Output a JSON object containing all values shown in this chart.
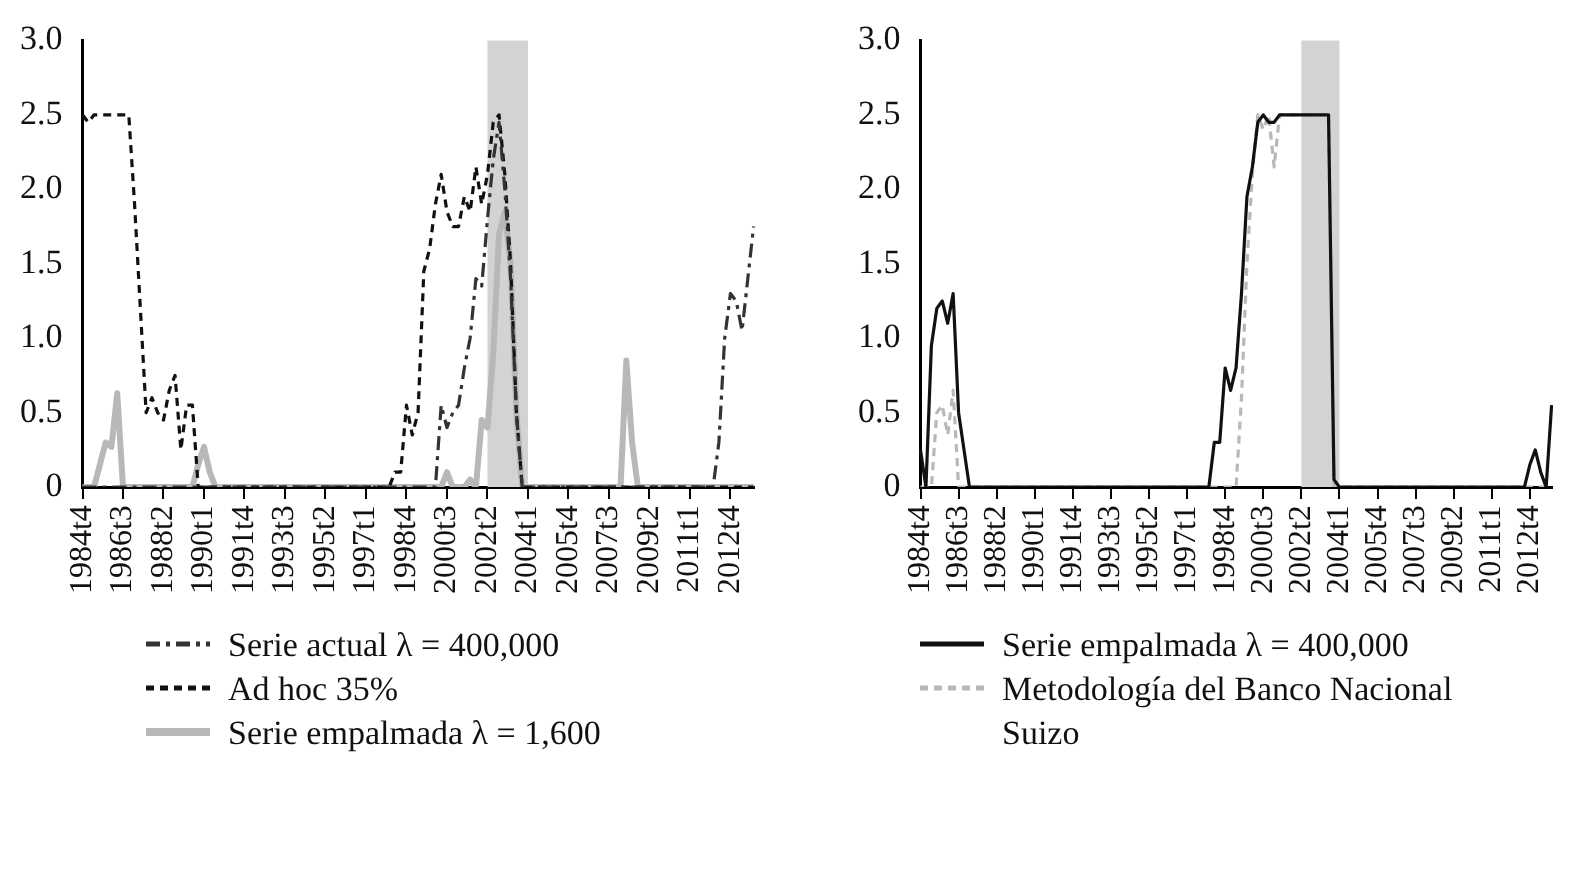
{
  "chart_data": [
    {
      "type": "line",
      "categories": [
        "1984t4",
        null,
        null,
        null,
        null,
        null,
        null,
        "1986t3",
        null,
        null,
        null,
        null,
        null,
        null,
        "1988t2",
        null,
        null,
        null,
        null,
        null,
        null,
        "1990t1",
        null,
        null,
        null,
        null,
        null,
        null,
        "1991t4",
        null,
        null,
        null,
        null,
        null,
        null,
        "1993t3",
        null,
        null,
        null,
        null,
        null,
        null,
        "1995t2",
        null,
        null,
        null,
        null,
        null,
        null,
        "1997t1",
        null,
        null,
        null,
        null,
        null,
        null,
        "1998t4",
        null,
        null,
        null,
        null,
        null,
        null,
        "2000t3",
        null,
        null,
        null,
        null,
        null,
        null,
        "2002t2",
        null,
        null,
        null,
        null,
        null,
        null,
        "2004t1",
        null,
        null,
        null,
        null,
        null,
        null,
        "2005t4",
        null,
        null,
        null,
        null,
        null,
        null,
        "2007t3",
        null,
        null,
        null,
        null,
        null,
        null,
        "2009t2",
        null,
        null,
        null,
        null,
        null,
        null,
        "2011t1",
        null,
        null,
        null,
        null,
        null,
        null,
        "2012t4",
        null,
        null,
        null,
        null
      ],
      "series": [
        {
          "name": "Serie actual  λ = 400,000",
          "color": "#333333",
          "line_style": "dotted",
          "values": [
            0,
            0,
            0,
            0,
            0,
            0,
            0,
            0,
            0,
            0,
            0,
            0,
            0,
            0,
            0,
            0,
            0,
            0,
            0,
            0,
            0,
            0,
            0,
            0,
            0,
            0,
            0,
            0,
            0,
            0,
            0,
            0,
            0,
            0,
            0,
            0,
            0,
            0,
            0,
            0,
            0,
            0,
            0,
            0,
            0,
            0,
            0,
            0,
            0,
            0,
            0,
            0,
            0,
            0,
            0,
            0,
            0,
            0,
            0,
            0,
            0,
            0,
            0.55,
            0.4,
            0.5,
            0.55,
            0.8,
            1.0,
            1.4,
            1.35,
            1.8,
            2.2,
            2.45,
            2.0,
            1.4,
            0.5,
            0,
            0,
            0,
            0,
            0,
            0,
            0,
            0,
            0,
            0,
            0,
            0,
            0,
            0,
            0,
            0,
            0,
            0,
            0,
            0,
            0,
            0,
            0,
            0,
            0,
            0,
            0,
            0,
            0,
            0,
            0,
            0,
            0,
            0,
            0.3,
            1.0,
            1.3,
            1.25,
            1.05,
            1.4,
            1.75
          ]
        },
        {
          "name": "Ad hoc  35%",
          "color": "#111111",
          "line_style": "dashed",
          "values": [
            2.5,
            2.45,
            2.5,
            2.5,
            2.5,
            2.5,
            2.5,
            2.5,
            2.5,
            1.9,
            1.2,
            0.5,
            0.6,
            0.5,
            0.45,
            0.65,
            0.75,
            0.25,
            0.55,
            0.55,
            0,
            0,
            0,
            0,
            0,
            0,
            0,
            0,
            0,
            0,
            0,
            0,
            0,
            0,
            0,
            0,
            0,
            0,
            0,
            0,
            0,
            0,
            0,
            0,
            0,
            0,
            0,
            0,
            0,
            0,
            0,
            0,
            0,
            0,
            0.1,
            0.1,
            0.55,
            0.35,
            0.5,
            1.45,
            1.6,
            1.9,
            2.1,
            1.85,
            1.75,
            1.75,
            1.95,
            1.85,
            2.15,
            1.9,
            2.1,
            2.45,
            2.5,
            2.1,
            1.5,
            0.5,
            0,
            0,
            0,
            0,
            0,
            0,
            0,
            0,
            0,
            0,
            0,
            0,
            0,
            0,
            0,
            0,
            0,
            0,
            0,
            0,
            0,
            0,
            0,
            0,
            0,
            0,
            0,
            0,
            0,
            0,
            0,
            0,
            0,
            0,
            0,
            0,
            0,
            0,
            0,
            0,
            0
          ]
        },
        {
          "name": "Serie empalmada  λ = 1,600",
          "color": "#b8b8b8",
          "line_style": "solid",
          "values": [
            0,
            0,
            0,
            0.15,
            0.3,
            0.27,
            0.63,
            0,
            0,
            0,
            0,
            0,
            0,
            0,
            0,
            0,
            0,
            0,
            0,
            0,
            0.15,
            0.27,
            0.1,
            0,
            0,
            0,
            0,
            0,
            0,
            0,
            0,
            0,
            0,
            0,
            0,
            0,
            0,
            0,
            0,
            0,
            0,
            0,
            0,
            0,
            0,
            0,
            0,
            0,
            0,
            0,
            0,
            0,
            0,
            0,
            0,
            0,
            0,
            0,
            0,
            0,
            0,
            0,
            0,
            0.1,
            0,
            0,
            0,
            0.05,
            0,
            0.45,
            0.4,
            0.9,
            1.7,
            1.85,
            1.5,
            0.5,
            0,
            0,
            0,
            0,
            0,
            0,
            0,
            0,
            0,
            0,
            0,
            0,
            0,
            0,
            0,
            0,
            0,
            0,
            0.85,
            0.3,
            0,
            0,
            0,
            0,
            0,
            0,
            0,
            0,
            0,
            0,
            0,
            0,
            0,
            0,
            0,
            0,
            0,
            0,
            0,
            0,
            0
          ]
        }
      ],
      "ylim": [
        0,
        3
      ],
      "yticks": [
        0,
        0.5,
        {
          "value": 1,
          "label": "1.0"
        },
        1.5,
        {
          "value": 2,
          "label": "2.0"
        },
        2.5,
        {
          "value": 3,
          "label": "3.0"
        }
      ],
      "bands": [
        {
          "axis": "x",
          "from": "2002t2",
          "to": "2004t1",
          "color": "#d3d3d3"
        }
      ],
      "legend": "bottom"
    },
    {
      "type": "line",
      "categories": [
        "1984t4",
        null,
        null,
        null,
        null,
        null,
        null,
        "1986t3",
        null,
        null,
        null,
        null,
        null,
        null,
        "1988t2",
        null,
        null,
        null,
        null,
        null,
        null,
        "1990t1",
        null,
        null,
        null,
        null,
        null,
        null,
        "1991t4",
        null,
        null,
        null,
        null,
        null,
        null,
        "1993t3",
        null,
        null,
        null,
        null,
        null,
        null,
        "1995t2",
        null,
        null,
        null,
        null,
        null,
        null,
        "1997t1",
        null,
        null,
        null,
        null,
        null,
        null,
        "1998t4",
        null,
        null,
        null,
        null,
        null,
        null,
        "2000t3",
        null,
        null,
        null,
        null,
        null,
        null,
        "2002t2",
        null,
        null,
        null,
        null,
        null,
        null,
        "2004t1",
        null,
        null,
        null,
        null,
        null,
        null,
        "2005t4",
        null,
        null,
        null,
        null,
        null,
        null,
        "2007t3",
        null,
        null,
        null,
        null,
        null,
        null,
        "2009t2",
        null,
        null,
        null,
        null,
        null,
        null,
        "2011t1",
        null,
        null,
        null,
        null,
        null,
        null,
        "2012t4",
        null,
        null,
        null,
        null
      ],
      "series": [
        {
          "name": "Serie empalmada  λ = 400,000",
          "color": "#111111",
          "line_style": "solid",
          "values": [
            0.25,
            0,
            0.95,
            1.2,
            1.25,
            1.1,
            1.3,
            0.5,
            0.25,
            0,
            0,
            0,
            0,
            0,
            0,
            0,
            0,
            0,
            0,
            0,
            0,
            0,
            0,
            0,
            0,
            0,
            0,
            0,
            0,
            0,
            0,
            0,
            0,
            0,
            0,
            0,
            0,
            0,
            0,
            0,
            0,
            0,
            0,
            0,
            0,
            0,
            0,
            0,
            0,
            0,
            0,
            0,
            0,
            0,
            0.3,
            0.3,
            0.8,
            0.65,
            0.8,
            1.3,
            1.95,
            2.15,
            2.45,
            2.5,
            2.45,
            2.45,
            2.5,
            2.5,
            2.5,
            2.5,
            2.5,
            2.5,
            2.5,
            2.5,
            2.5,
            2.5,
            0.05,
            0,
            0,
            0,
            0,
            0,
            0,
            0,
            0,
            0,
            0,
            0,
            0,
            0,
            0,
            0,
            0,
            0,
            0,
            0,
            0,
            0,
            0,
            0,
            0,
            0,
            0,
            0,
            0,
            0,
            0,
            0,
            0,
            0,
            0,
            0,
            0.15,
            0.25,
            0.1,
            0,
            0.55
          ]
        },
        {
          "name": "Metodología del Banco Nacional Suizo",
          "color": "#b8b8b8",
          "line_style": "dashed",
          "values": [
            0,
            0,
            0,
            0.5,
            0.55,
            0.35,
            0.65,
            0,
            0,
            0,
            0,
            0,
            0,
            0,
            0,
            0,
            0,
            0,
            0,
            0,
            0,
            0,
            0,
            0,
            0,
            0,
            0,
            0,
            0,
            0,
            0,
            0,
            0,
            0,
            0,
            0,
            0,
            0,
            0,
            0,
            0,
            0,
            0,
            0,
            0,
            0,
            0,
            0,
            0,
            0,
            0,
            0,
            0,
            0,
            0,
            0,
            0,
            0,
            0,
            0.6,
            1.5,
            2.1,
            2.5,
            2.4,
            2.5,
            2.15,
            2.5,
            2.5,
            2.5,
            2.5,
            2.5,
            2.5,
            2.5,
            2.5,
            2.5,
            2.5,
            0,
            0,
            0,
            0,
            0,
            0,
            0,
            0,
            0,
            0,
            0,
            0,
            0,
            0,
            0,
            0,
            0,
            0,
            0,
            0,
            0,
            0,
            0,
            0,
            0,
            0,
            0,
            0,
            0,
            0,
            0,
            0,
            0,
            0,
            0,
            0,
            0,
            0,
            0,
            0,
            0
          ]
        }
      ],
      "ylim": [
        0,
        3
      ],
      "yticks": [
        0,
        0.5,
        {
          "value": 1,
          "label": "1.0"
        },
        1.5,
        {
          "value": 2,
          "label": "2.0"
        },
        2.5,
        {
          "value": 3,
          "label": "3.0"
        }
      ],
      "bands": [
        {
          "axis": "x",
          "from": "2002t2",
          "to": "2004t1",
          "color": "#d3d3d3"
        }
      ],
      "legend": "bottom"
    }
  ]
}
